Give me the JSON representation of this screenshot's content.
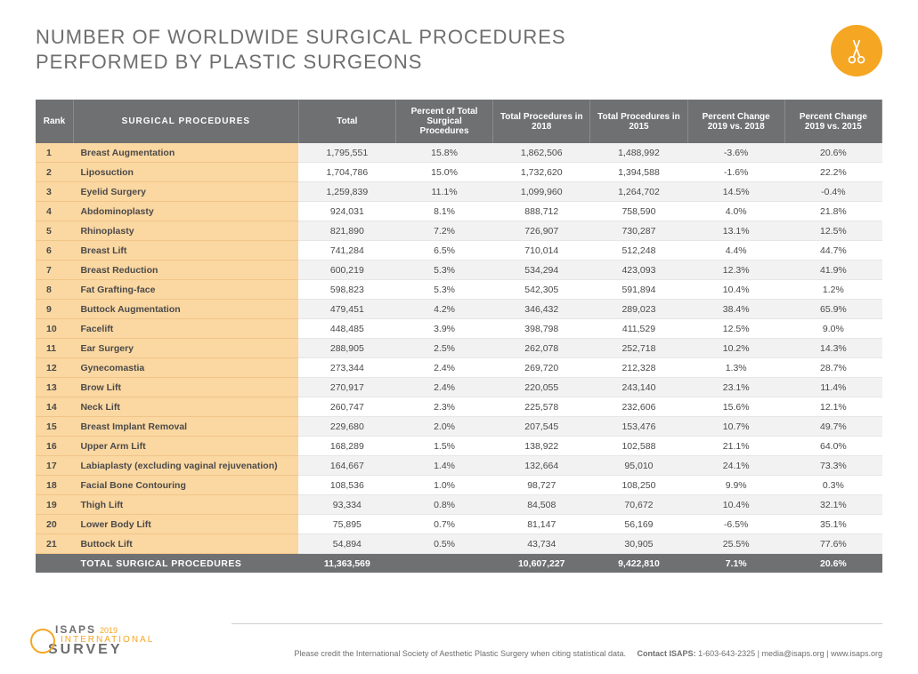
{
  "title": {
    "line1": "NUMBER OF WORLDWIDE SURGICAL PROCEDURES",
    "line2": "PERFORMED BY PLASTIC SURGEONS"
  },
  "badge": {
    "bg": "#f5a623",
    "stroke": "#ffffff"
  },
  "table": {
    "header_bg": "#6f7072",
    "header_fg": "#ffffff",
    "rank_col_bg": "#fbd7a1",
    "row_alt_bg": "#f2f2f2",
    "columns": [
      "Rank",
      "SURGICAL PROCEDURES",
      "Total",
      "Percent of Total Surgical Procedures",
      "Total Procedures in 2018",
      "Total Procedures in 2015",
      "Percent Change 2019 vs. 2018",
      "Percent Change 2019 vs. 2015"
    ],
    "rows": [
      [
        "1",
        "Breast Augmentation",
        "1,795,551",
        "15.8%",
        "1,862,506",
        "1,488,992",
        "-3.6%",
        "20.6%"
      ],
      [
        "2",
        "Liposuction",
        "1,704,786",
        "15.0%",
        "1,732,620",
        "1,394,588",
        "-1.6%",
        "22.2%"
      ],
      [
        "3",
        "Eyelid Surgery",
        "1,259,839",
        "11.1%",
        "1,099,960",
        "1,264,702",
        "14.5%",
        "-0.4%"
      ],
      [
        "4",
        "Abdominoplasty",
        "924,031",
        "8.1%",
        "888,712",
        "758,590",
        "4.0%",
        "21.8%"
      ],
      [
        "5",
        "Rhinoplasty",
        "821,890",
        "7.2%",
        "726,907",
        "730,287",
        "13.1%",
        "12.5%"
      ],
      [
        "6",
        "Breast Lift",
        "741,284",
        "6.5%",
        "710,014",
        "512,248",
        "4.4%",
        "44.7%"
      ],
      [
        "7",
        "Breast Reduction",
        "600,219",
        "5.3%",
        "534,294",
        "423,093",
        "12.3%",
        "41.9%"
      ],
      [
        "8",
        "Fat Grafting-face",
        "598,823",
        "5.3%",
        "542,305",
        "591,894",
        "10.4%",
        "1.2%"
      ],
      [
        "9",
        "Buttock Augmentation",
        "479,451",
        "4.2%",
        "346,432",
        "289,023",
        "38.4%",
        "65.9%"
      ],
      [
        "10",
        "Facelift",
        "448,485",
        "3.9%",
        "398,798",
        "411,529",
        "12.5%",
        "9.0%"
      ],
      [
        "11",
        "Ear Surgery",
        "288,905",
        "2.5%",
        "262,078",
        "252,718",
        "10.2%",
        "14.3%"
      ],
      [
        "12",
        "Gynecomastia",
        "273,344",
        "2.4%",
        "269,720",
        "212,328",
        "1.3%",
        "28.7%"
      ],
      [
        "13",
        "Brow Lift",
        "270,917",
        "2.4%",
        "220,055",
        "243,140",
        "23.1%",
        "11.4%"
      ],
      [
        "14",
        "Neck Lift",
        "260,747",
        "2.3%",
        "225,578",
        "232,606",
        "15.6%",
        "12.1%"
      ],
      [
        "15",
        "Breast Implant Removal",
        "229,680",
        "2.0%",
        "207,545",
        "153,476",
        "10.7%",
        "49.7%"
      ],
      [
        "16",
        "Upper Arm Lift",
        "168,289",
        "1.5%",
        "138,922",
        "102,588",
        "21.1%",
        "64.0%"
      ],
      [
        "17",
        "Labiaplasty (excluding vaginal rejuvenation)",
        "164,667",
        "1.4%",
        "132,664",
        "95,010",
        "24.1%",
        "73.3%"
      ],
      [
        "18",
        "Facial Bone Contouring",
        "108,536",
        "1.0%",
        "98,727",
        "108,250",
        "9.9%",
        "0.3%"
      ],
      [
        "19",
        "Thigh Lift",
        "93,334",
        "0.8%",
        "84,508",
        "70,672",
        "10.4%",
        "32.1%"
      ],
      [
        "20",
        "Lower Body Lift",
        "75,895",
        "0.7%",
        "81,147",
        "56,169",
        "-6.5%",
        "35.1%"
      ],
      [
        "21",
        "Buttock Lift",
        "54,894",
        "0.5%",
        "43,734",
        "30,905",
        "25.5%",
        "77.6%"
      ]
    ],
    "total_row": [
      "",
      "TOTAL SURGICAL PROCEDURES",
      "11,363,569",
      "",
      "10,607,227",
      "9,422,810",
      "7.1%",
      "20.6%"
    ]
  },
  "footer": {
    "logo": {
      "brand": "ISAPS",
      "year": "2019",
      "line2": "INTERNATIONAL",
      "line3": "SURVEY"
    },
    "credit_text": "Please credit the International Society of Aesthetic Plastic Surgery when citing statistical data.",
    "contact_label": "Contact ISAPS:",
    "contact_value": "1-603-643-2325 | media@isaps.org | www.isaps.org"
  }
}
